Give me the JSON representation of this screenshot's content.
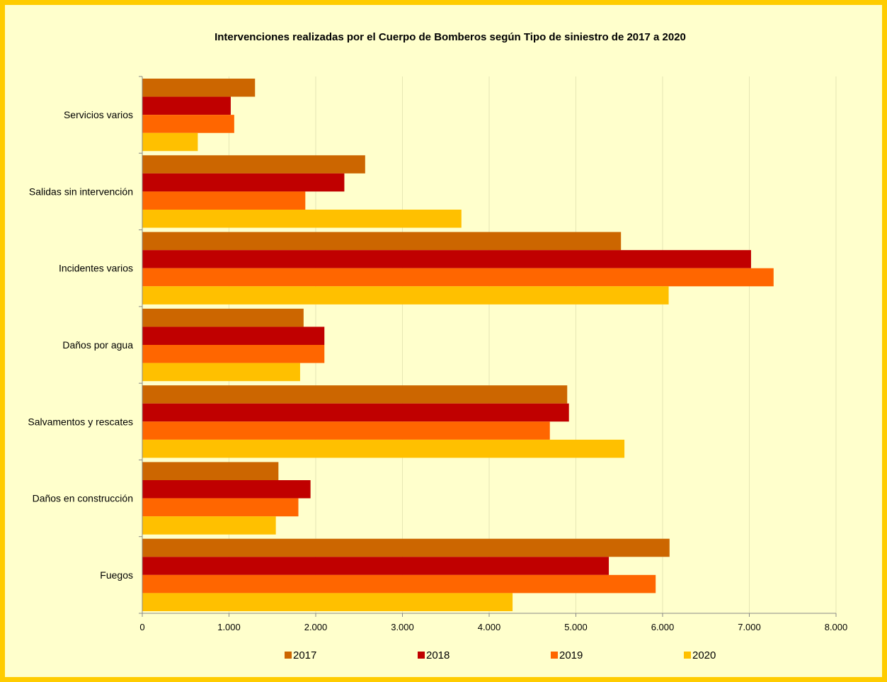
{
  "chart_data": {
    "type": "bar",
    "orientation": "horizontal",
    "title": "Intervenciones realizadas por el Cuerpo de Bomberos según Tipo de siniestro de 2017 a 2020",
    "categories": [
      "Fuegos",
      "Daños en construcción",
      "Salvamentos y rescates",
      "Daños por agua",
      "Incidentes varios",
      "Salidas sin intervención",
      "Servicios varios"
    ],
    "series": [
      {
        "name": "2017",
        "color": "#cc6600",
        "values": [
          6080,
          1570,
          4900,
          1860,
          5520,
          2570,
          1300
        ]
      },
      {
        "name": "2018",
        "color": "#c00000",
        "values": [
          5380,
          1940,
          4920,
          2100,
          7020,
          2330,
          1020
        ]
      },
      {
        "name": "2019",
        "color": "#ff6600",
        "values": [
          5920,
          1800,
          4700,
          2100,
          7280,
          1880,
          1060
        ]
      },
      {
        "name": "2020",
        "color": "#ffc000",
        "values": [
          4270,
          1540,
          5560,
          1820,
          6070,
          3680,
          640
        ]
      }
    ],
    "xlim": [
      0,
      8000
    ],
    "xticks": [
      0,
      1000,
      2000,
      3000,
      4000,
      5000,
      6000,
      7000,
      8000
    ],
    "xtick_labels": [
      "0",
      "1.000",
      "2.000",
      "3.000",
      "4.000",
      "5.000",
      "6.000",
      "7.000",
      "8.000"
    ],
    "grid": "vertical",
    "legend_position": "bottom",
    "background_color": "#ffffcc",
    "border_color": "#ffcc00",
    "gridline_color": "#e6e6b4"
  }
}
